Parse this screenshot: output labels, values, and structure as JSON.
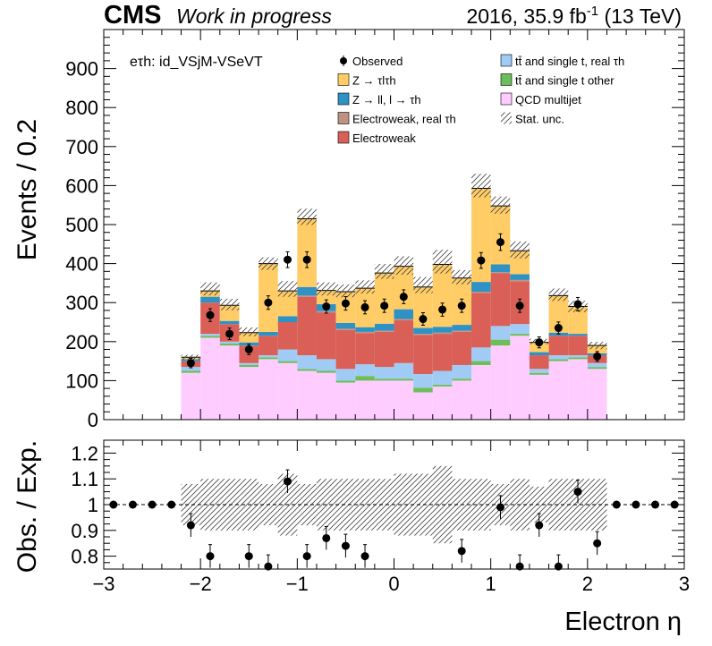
{
  "header": {
    "experiment": "CMS",
    "status": "Work in progress",
    "lumi_prefix": "2016, 35.9 fb",
    "lumi_exp": "-1",
    "lumi_suffix": " (13 TeV)"
  },
  "chart_data": [
    {
      "type": "bar",
      "stacked": true,
      "title": "",
      "channel_label": "eτh: id_VSjM-VSeVT",
      "xlabel": "Electron η",
      "ylabel": "Events / 0.2",
      "xlim": [
        -3,
        3
      ],
      "ylim": [
        0,
        1000
      ],
      "yticks": [
        0,
        100,
        200,
        300,
        400,
        500,
        600,
        700,
        800,
        900
      ],
      "xticks": [
        -3,
        -2,
        -1,
        0,
        1,
        2,
        3
      ],
      "bin_edges": [
        -2.2,
        -2.0,
        -1.8,
        -1.6,
        -1.4,
        -1.2,
        -1.0,
        -0.8,
        -0.6,
        -0.4,
        -0.2,
        0.0,
        0.2,
        0.4,
        0.6,
        0.8,
        1.0,
        1.2,
        1.4,
        1.6,
        1.8,
        2.0,
        2.2
      ],
      "series": [
        {
          "name": "QCD multijet",
          "color": "#ffccff",
          "values": [
            120,
            210,
            190,
            135,
            155,
            145,
            125,
            120,
            95,
            100,
            100,
            100,
            70,
            85,
            100,
            140,
            190,
            215,
            115,
            150,
            155,
            130
          ]
        },
        {
          "name": "tt̄ and single t other",
          "color": "#6dbe5a",
          "values": [
            5,
            5,
            5,
            5,
            5,
            5,
            5,
            5,
            5,
            12,
            5,
            5,
            12,
            5,
            5,
            10,
            15,
            5,
            5,
            5,
            5,
            5
          ]
        },
        {
          "name": "tt̄ and single t, real τh",
          "color": "#a0cbf5",
          "values": [
            10,
            5,
            5,
            5,
            5,
            30,
            35,
            30,
            30,
            30,
            30,
            40,
            35,
            35,
            35,
            35,
            35,
            25,
            10,
            10,
            5,
            10
          ]
        },
        {
          "name": "Electroweak",
          "color": "#d95f57",
          "values": [
            15,
            80,
            45,
            45,
            50,
            70,
            150,
            120,
            100,
            80,
            90,
            110,
            100,
            95,
            85,
            140,
            135,
            110,
            35,
            50,
            50,
            20
          ]
        },
        {
          "name": "Electroweak, real τh",
          "color": "#c09282",
          "values": [
            0,
            0,
            0,
            0,
            0,
            0,
            3,
            3,
            3,
            3,
            3,
            3,
            3,
            3,
            3,
            3,
            3,
            3,
            0,
            0,
            0,
            0
          ]
        },
        {
          "name": "Z → ll, l → τh",
          "color": "#2f92c4",
          "values": [
            5,
            15,
            8,
            8,
            10,
            15,
            22,
            18,
            15,
            12,
            18,
            25,
            15,
            15,
            15,
            25,
            20,
            15,
            8,
            8,
            5,
            5
          ]
        },
        {
          "name": "Z → τlτh",
          "color": "#ffcc66",
          "values": [
            5,
            15,
            40,
            25,
            175,
            65,
            175,
            35,
            80,
            100,
            130,
            110,
            105,
            160,
            120,
            240,
            150,
            60,
            25,
            95,
            70,
            20
          ]
        }
      ],
      "total_expected": [
        160,
        335,
        295,
        225,
        400,
        335,
        520,
        335,
        330,
        340,
        380,
        395,
        345,
        405,
        365,
        600,
        550,
        435,
        200,
        320,
        290,
        190
      ],
      "observed": {
        "name": "Observed",
        "x": [
          -2.1,
          -1.9,
          -1.7,
          -1.5,
          -1.3,
          -1.1,
          -0.9,
          -0.7,
          -0.5,
          -0.3,
          -0.1,
          0.1,
          0.3,
          0.5,
          0.7,
          0.9,
          1.1,
          1.3,
          1.5,
          1.7,
          1.9,
          2.1
        ],
        "values": [
          145,
          268,
          220,
          180,
          300,
          410,
          410,
          290,
          298,
          288,
          292,
          315,
          258,
          282,
          292,
          408,
          455,
          292,
          198,
          235,
          296,
          162
        ]
      },
      "legend": [
        {
          "label": "Observed",
          "kind": "marker",
          "color": "#000000"
        },
        {
          "label": "Z → τlτh",
          "kind": "box",
          "color": "#ffcc66"
        },
        {
          "label": "Z → ll, l → τh",
          "kind": "box",
          "color": "#2f92c4"
        },
        {
          "label": "Electroweak, real τh",
          "kind": "box",
          "color": "#c09282"
        },
        {
          "label": "Electroweak",
          "kind": "box",
          "color": "#d95f57"
        },
        {
          "label": "tt̄ and single t, real τh",
          "kind": "box",
          "color": "#a0cbf5"
        },
        {
          "label": "tt̄ and single t other",
          "kind": "box",
          "color": "#6dbe5a"
        },
        {
          "label": "QCD multijet",
          "kind": "box",
          "color": "#ffccff"
        },
        {
          "label": "Stat. unc.",
          "kind": "hatch",
          "color": "#000000"
        }
      ]
    },
    {
      "type": "scatter",
      "title": "",
      "xlabel": "Electron η",
      "ylabel": "Obs. / Exp.",
      "xlim": [
        -3,
        3
      ],
      "ylim": [
        0.75,
        1.25
      ],
      "yticks": [
        0.8,
        0.9,
        1,
        1.1,
        1.2
      ],
      "xticks": [
        -3,
        -2,
        -1,
        0,
        1,
        2,
        3
      ],
      "reference_line": 1,
      "x": [
        -2.9,
        -2.7,
        -2.5,
        -2.3,
        -2.1,
        -1.9,
        -1.7,
        -1.5,
        -1.3,
        -1.1,
        -0.9,
        -0.7,
        -0.5,
        -0.3,
        -0.1,
        0.1,
        0.3,
        0.5,
        0.7,
        0.9,
        1.1,
        1.3,
        1.5,
        1.7,
        1.9,
        2.1,
        2.3,
        2.5,
        2.7,
        2.9
      ],
      "values": [
        1,
        1,
        1,
        1,
        0.92,
        0.8,
        null,
        0.8,
        0.76,
        1.09,
        0.8,
        0.87,
        0.84,
        0.8,
        null,
        null,
        null,
        null,
        0.82,
        null,
        0.99,
        0.76,
        0.92,
        0.76,
        1.05,
        0.85,
        1,
        1,
        1,
        1
      ],
      "uncertainty_band": [
        0.08,
        0.1,
        0.1,
        0.1,
        0.08,
        0.12,
        0.08,
        0.1,
        0.1,
        0.1,
        0.1,
        0.12,
        0.12,
        0.15,
        0.1,
        0.1,
        0.08,
        0.1,
        0.07,
        0.1,
        0.1,
        0.1
      ]
    }
  ]
}
